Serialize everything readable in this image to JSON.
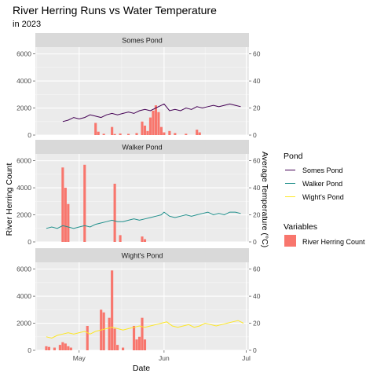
{
  "chart_data": {
    "type": "bar+line",
    "title": "River Herring Runs vs Water Temperature",
    "subtitle": "in 2023",
    "xlabel": "Date",
    "ylabel_left": "River Herring Count",
    "ylabel_right": "Average Temperature (°C)",
    "x_range": [
      "2023-04-15",
      "2023-07-02"
    ],
    "x_ticks": [
      {
        "date": "2023-05-01",
        "label": "May"
      },
      {
        "date": "2023-06-01",
        "label": "Jun"
      },
      {
        "date": "2023-07-01",
        "label": "Jul"
      }
    ],
    "ylim_left": [
      0,
      6500
    ],
    "ylim_right": [
      0,
      65
    ],
    "y_ticks_left": [
      0,
      2000,
      4000,
      6000
    ],
    "y_ticks_right": [
      0,
      20,
      40,
      60
    ],
    "grid": true,
    "legend": {
      "position": "right",
      "pond_title": "Pond",
      "variables_title": "Variables",
      "ponds": [
        {
          "name": "Somes Pond",
          "color": "#440154"
        },
        {
          "name": "Walker Pond",
          "color": "#21908C"
        },
        {
          "name": "Wight's Pond",
          "color": "#FDE725"
        }
      ],
      "variable": {
        "name": "River Herring Count",
        "color": "#F8766D"
      }
    },
    "panels": [
      {
        "name": "Somes Pond",
        "line_color": "#440154",
        "counts": [
          {
            "date": "2023-05-07",
            "value": 900
          },
          {
            "date": "2023-05-08",
            "value": 250
          },
          {
            "date": "2023-05-10",
            "value": 100
          },
          {
            "date": "2023-05-13",
            "value": 600
          },
          {
            "date": "2023-05-14",
            "value": 80
          },
          {
            "date": "2023-05-16",
            "value": 120
          },
          {
            "date": "2023-05-19",
            "value": 90
          },
          {
            "date": "2023-05-22",
            "value": 150
          },
          {
            "date": "2023-05-24",
            "value": 1000
          },
          {
            "date": "2023-05-25",
            "value": 700
          },
          {
            "date": "2023-05-26",
            "value": 300
          },
          {
            "date": "2023-05-27",
            "value": 1300
          },
          {
            "date": "2023-05-28",
            "value": 1800
          },
          {
            "date": "2023-05-29",
            "value": 2200
          },
          {
            "date": "2023-05-30",
            "value": 1700
          },
          {
            "date": "2023-05-31",
            "value": 600
          },
          {
            "date": "2023-06-01",
            "value": 200
          },
          {
            "date": "2023-06-03",
            "value": 300
          },
          {
            "date": "2023-06-05",
            "value": 150
          },
          {
            "date": "2023-06-09",
            "value": 100
          },
          {
            "date": "2023-06-13",
            "value": 400
          },
          {
            "date": "2023-06-14",
            "value": 200
          }
        ],
        "temperature": [
          {
            "date": "2023-04-25",
            "value": 10
          },
          {
            "date": "2023-04-27",
            "value": 11
          },
          {
            "date": "2023-04-29",
            "value": 13
          },
          {
            "date": "2023-05-01",
            "value": 12
          },
          {
            "date": "2023-05-03",
            "value": 13
          },
          {
            "date": "2023-05-05",
            "value": 15
          },
          {
            "date": "2023-05-07",
            "value": 14
          },
          {
            "date": "2023-05-09",
            "value": 13
          },
          {
            "date": "2023-05-11",
            "value": 15
          },
          {
            "date": "2023-05-13",
            "value": 16
          },
          {
            "date": "2023-05-15",
            "value": 15
          },
          {
            "date": "2023-05-17",
            "value": 16
          },
          {
            "date": "2023-05-19",
            "value": 17
          },
          {
            "date": "2023-05-21",
            "value": 16
          },
          {
            "date": "2023-05-23",
            "value": 18
          },
          {
            "date": "2023-05-25",
            "value": 19
          },
          {
            "date": "2023-05-27",
            "value": 18
          },
          {
            "date": "2023-05-29",
            "value": 20
          },
          {
            "date": "2023-05-31",
            "value": 22
          },
          {
            "date": "2023-06-01",
            "value": 23
          },
          {
            "date": "2023-06-03",
            "value": 18
          },
          {
            "date": "2023-06-05",
            "value": 19
          },
          {
            "date": "2023-06-07",
            "value": 18
          },
          {
            "date": "2023-06-09",
            "value": 20
          },
          {
            "date": "2023-06-11",
            "value": 19
          },
          {
            "date": "2023-06-13",
            "value": 21
          },
          {
            "date": "2023-06-15",
            "value": 20
          },
          {
            "date": "2023-06-17",
            "value": 21
          },
          {
            "date": "2023-06-19",
            "value": 22
          },
          {
            "date": "2023-06-21",
            "value": 21
          },
          {
            "date": "2023-06-23",
            "value": 22
          },
          {
            "date": "2023-06-25",
            "value": 23
          },
          {
            "date": "2023-06-27",
            "value": 22
          },
          {
            "date": "2023-06-29",
            "value": 21
          }
        ]
      },
      {
        "name": "Walker Pond",
        "line_color": "#21908C",
        "counts": [
          {
            "date": "2023-04-25",
            "value": 5500
          },
          {
            "date": "2023-04-26",
            "value": 4000
          },
          {
            "date": "2023-04-27",
            "value": 2800
          },
          {
            "date": "2023-05-03",
            "value": 5700
          },
          {
            "date": "2023-05-14",
            "value": 4300
          },
          {
            "date": "2023-05-16",
            "value": 500
          },
          {
            "date": "2023-05-24",
            "value": 400
          },
          {
            "date": "2023-05-25",
            "value": 200
          }
        ],
        "temperature": [
          {
            "date": "2023-04-19",
            "value": 10
          },
          {
            "date": "2023-04-21",
            "value": 11
          },
          {
            "date": "2023-04-23",
            "value": 10
          },
          {
            "date": "2023-04-25",
            "value": 12
          },
          {
            "date": "2023-04-27",
            "value": 11
          },
          {
            "date": "2023-04-29",
            "value": 10
          },
          {
            "date": "2023-05-01",
            "value": 11
          },
          {
            "date": "2023-05-03",
            "value": 12
          },
          {
            "date": "2023-05-05",
            "value": 11
          },
          {
            "date": "2023-05-07",
            "value": 13
          },
          {
            "date": "2023-05-09",
            "value": 14
          },
          {
            "date": "2023-05-11",
            "value": 15
          },
          {
            "date": "2023-05-13",
            "value": 16
          },
          {
            "date": "2023-05-15",
            "value": 15
          },
          {
            "date": "2023-05-17",
            "value": 15
          },
          {
            "date": "2023-05-19",
            "value": 16
          },
          {
            "date": "2023-05-21",
            "value": 17
          },
          {
            "date": "2023-05-23",
            "value": 16
          },
          {
            "date": "2023-05-25",
            "value": 17
          },
          {
            "date": "2023-05-27",
            "value": 18
          },
          {
            "date": "2023-05-29",
            "value": 19
          },
          {
            "date": "2023-05-31",
            "value": 20
          },
          {
            "date": "2023-06-01",
            "value": 22
          },
          {
            "date": "2023-06-03",
            "value": 19
          },
          {
            "date": "2023-06-05",
            "value": 18
          },
          {
            "date": "2023-06-07",
            "value": 19
          },
          {
            "date": "2023-06-09",
            "value": 20
          },
          {
            "date": "2023-06-11",
            "value": 19
          },
          {
            "date": "2023-06-13",
            "value": 20
          },
          {
            "date": "2023-06-15",
            "value": 21
          },
          {
            "date": "2023-06-17",
            "value": 22
          },
          {
            "date": "2023-06-19",
            "value": 20
          },
          {
            "date": "2023-06-21",
            "value": 21
          },
          {
            "date": "2023-06-23",
            "value": 20
          },
          {
            "date": "2023-06-25",
            "value": 22
          },
          {
            "date": "2023-06-27",
            "value": 22
          },
          {
            "date": "2023-06-29",
            "value": 21
          }
        ]
      },
      {
        "name": "Wight's Pond",
        "line_color": "#FDE725",
        "counts": [
          {
            "date": "2023-04-19",
            "value": 300
          },
          {
            "date": "2023-04-20",
            "value": 250
          },
          {
            "date": "2023-04-22",
            "value": 200
          },
          {
            "date": "2023-04-24",
            "value": 400
          },
          {
            "date": "2023-04-25",
            "value": 600
          },
          {
            "date": "2023-04-26",
            "value": 500
          },
          {
            "date": "2023-04-27",
            "value": 300
          },
          {
            "date": "2023-04-28",
            "value": 200
          },
          {
            "date": "2023-05-04",
            "value": 1800
          },
          {
            "date": "2023-05-09",
            "value": 3000
          },
          {
            "date": "2023-05-10",
            "value": 2800
          },
          {
            "date": "2023-05-12",
            "value": 2400
          },
          {
            "date": "2023-05-13",
            "value": 5900
          },
          {
            "date": "2023-05-14",
            "value": 1600
          },
          {
            "date": "2023-05-15",
            "value": 400
          },
          {
            "date": "2023-05-17",
            "value": 200
          },
          {
            "date": "2023-05-21",
            "value": 1800
          },
          {
            "date": "2023-05-22",
            "value": 800
          },
          {
            "date": "2023-05-23",
            "value": 1000
          },
          {
            "date": "2023-05-24",
            "value": 2400
          },
          {
            "date": "2023-05-25",
            "value": 800
          }
        ],
        "temperature": [
          {
            "date": "2023-04-19",
            "value": 10
          },
          {
            "date": "2023-04-21",
            "value": 9
          },
          {
            "date": "2023-04-23",
            "value": 11
          },
          {
            "date": "2023-04-25",
            "value": 12
          },
          {
            "date": "2023-04-27",
            "value": 13
          },
          {
            "date": "2023-04-29",
            "value": 12
          },
          {
            "date": "2023-05-01",
            "value": 13
          },
          {
            "date": "2023-05-03",
            "value": 14
          },
          {
            "date": "2023-05-05",
            "value": 12
          },
          {
            "date": "2023-05-07",
            "value": 14
          },
          {
            "date": "2023-05-09",
            "value": 15
          },
          {
            "date": "2023-05-11",
            "value": 16
          },
          {
            "date": "2023-05-13",
            "value": 17
          },
          {
            "date": "2023-05-15",
            "value": 16
          },
          {
            "date": "2023-05-17",
            "value": 15
          },
          {
            "date": "2023-05-19",
            "value": 16
          },
          {
            "date": "2023-05-21",
            "value": 17
          },
          {
            "date": "2023-05-23",
            "value": 18
          },
          {
            "date": "2023-05-25",
            "value": 17
          },
          {
            "date": "2023-05-27",
            "value": 18
          },
          {
            "date": "2023-05-29",
            "value": 19
          },
          {
            "date": "2023-05-31",
            "value": 20
          },
          {
            "date": "2023-06-02",
            "value": 21
          },
          {
            "date": "2023-06-04",
            "value": 18
          },
          {
            "date": "2023-06-06",
            "value": 17
          },
          {
            "date": "2023-06-08",
            "value": 18
          },
          {
            "date": "2023-06-10",
            "value": 19
          },
          {
            "date": "2023-06-12",
            "value": 17
          },
          {
            "date": "2023-06-14",
            "value": 18
          },
          {
            "date": "2023-06-16",
            "value": 20
          },
          {
            "date": "2023-06-18",
            "value": 19
          },
          {
            "date": "2023-06-20",
            "value": 18
          },
          {
            "date": "2023-06-22",
            "value": 19
          },
          {
            "date": "2023-06-24",
            "value": 20
          },
          {
            "date": "2023-06-26",
            "value": 21
          },
          {
            "date": "2023-06-28",
            "value": 22
          },
          {
            "date": "2023-06-30",
            "value": 20
          }
        ]
      }
    ]
  }
}
